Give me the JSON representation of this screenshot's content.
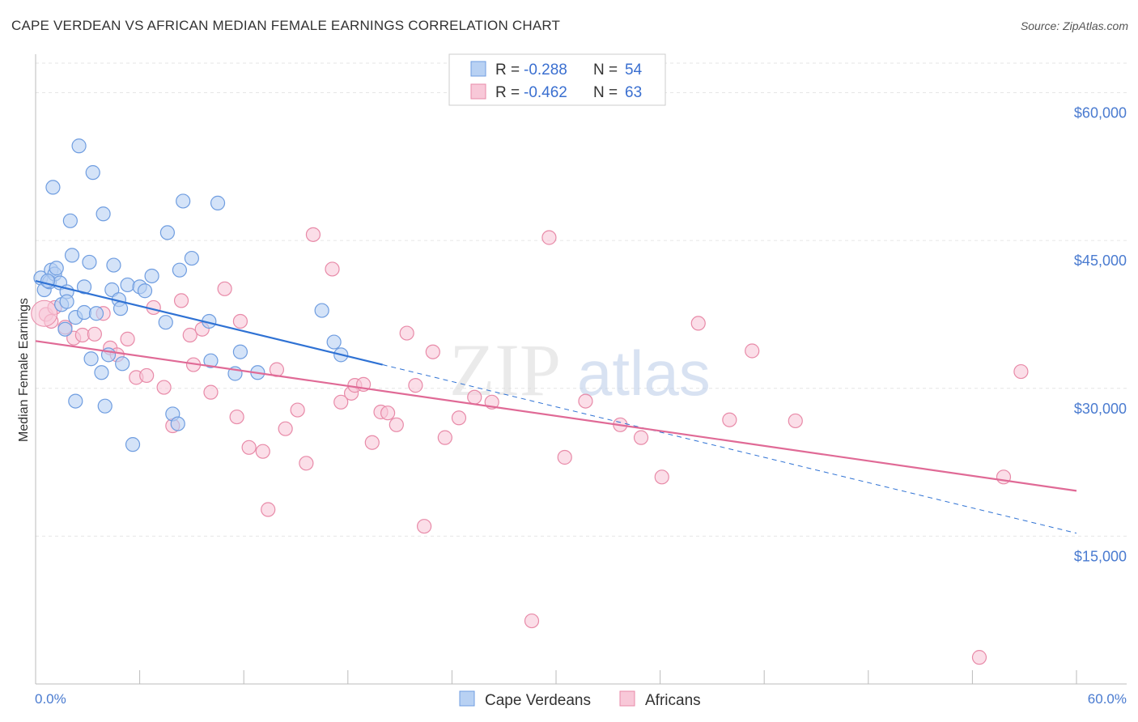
{
  "title": "CAPE VERDEAN VS AFRICAN MEDIAN FEMALE EARNINGS CORRELATION CHART",
  "source": "Source: ZipAtlas.com",
  "watermark": {
    "zip": "ZIP",
    "atlas": "atlas"
  },
  "colors": {
    "blue_fill": "#b8d1f3",
    "blue_stroke": "#6f9de0",
    "blue_line": "#2f72d4",
    "pink_fill": "#f8c8d8",
    "pink_stroke": "#e88aa8",
    "pink_line": "#e06a96",
    "tick": "#4a7bd0",
    "grid": "#e6e6e6"
  },
  "legend": {
    "r_label": "R =",
    "n_label": "N =",
    "rows": [
      {
        "series": "Cape Verdeans",
        "r": "-0.288",
        "n": "54"
      },
      {
        "series": "Africans",
        "r": "-0.462",
        "n": "63"
      }
    ]
  },
  "chart_data": {
    "type": "scatter",
    "title": "CAPE VERDEAN VS AFRICAN MEDIAN FEMALE EARNINGS CORRELATION CHART",
    "xlabel": "",
    "ylabel": "Median Female Earnings",
    "xlim": [
      0,
      60
    ],
    "ylim": [
      0,
      63000
    ],
    "x_tick_labels": [
      "0.0%",
      "60.0%"
    ],
    "y_ticks": [
      {
        "value": 15000,
        "label": "$15,000"
      },
      {
        "value": 30000,
        "label": "$30,000"
      },
      {
        "value": 45000,
        "label": "$45,000"
      },
      {
        "value": 60000,
        "label": "$60,000"
      }
    ],
    "series": [
      {
        "name": "Cape Verdeans",
        "color": "#6f9de0",
        "trend": {
          "x": [
            0,
            20
          ],
          "y": [
            40900,
            32400
          ],
          "dashed_to_x": 60,
          "dashed_to_y": 15300
        },
        "points": [
          [
            0.3,
            41200
          ],
          [
            0.5,
            40000
          ],
          [
            0.8,
            40800
          ],
          [
            0.9,
            42000
          ],
          [
            1.1,
            41600
          ],
          [
            1.2,
            42200
          ],
          [
            1.4,
            40700
          ],
          [
            1.5,
            38500
          ],
          [
            1.7,
            36000
          ],
          [
            1.8,
            39800
          ],
          [
            1.8,
            38800
          ],
          [
            2.0,
            47000
          ],
          [
            2.1,
            43500
          ],
          [
            2.3,
            28700
          ],
          [
            2.3,
            37200
          ],
          [
            2.5,
            54600
          ],
          [
            2.8,
            40300
          ],
          [
            2.8,
            37700
          ],
          [
            3.1,
            42800
          ],
          [
            3.2,
            33000
          ],
          [
            3.3,
            51900
          ],
          [
            3.5,
            37600
          ],
          [
            3.8,
            31600
          ],
          [
            3.9,
            47700
          ],
          [
            4.0,
            28200
          ],
          [
            4.2,
            33400
          ],
          [
            4.4,
            40000
          ],
          [
            4.5,
            42500
          ],
          [
            4.8,
            39000
          ],
          [
            4.9,
            38100
          ],
          [
            5.0,
            32500
          ],
          [
            5.3,
            40500
          ],
          [
            5.6,
            24300
          ],
          [
            6.0,
            40300
          ],
          [
            6.3,
            39900
          ],
          [
            6.7,
            41400
          ],
          [
            7.5,
            36700
          ],
          [
            7.6,
            45800
          ],
          [
            7.9,
            27400
          ],
          [
            8.2,
            26400
          ],
          [
            8.3,
            42000
          ],
          [
            8.5,
            49000
          ],
          [
            9.0,
            43200
          ],
          [
            10.0,
            36800
          ],
          [
            10.1,
            32800
          ],
          [
            10.5,
            48800
          ],
          [
            11.5,
            31500
          ],
          [
            11.8,
            33700
          ],
          [
            12.8,
            31600
          ],
          [
            16.5,
            37900
          ],
          [
            17.2,
            34700
          ],
          [
            17.6,
            33400
          ],
          [
            1.0,
            50400
          ],
          [
            0.7,
            40900
          ]
        ]
      },
      {
        "name": "Africans",
        "color": "#e88aa8",
        "trend": {
          "x": [
            0,
            60
          ],
          "y": [
            34800,
            19600
          ]
        },
        "points": [
          [
            0.6,
            37500
          ],
          [
            1.1,
            38200
          ],
          [
            1.7,
            36200
          ],
          [
            2.2,
            35100
          ],
          [
            2.7,
            35400
          ],
          [
            3.4,
            35500
          ],
          [
            3.9,
            37600
          ],
          [
            4.3,
            34100
          ],
          [
            4.7,
            33400
          ],
          [
            5.3,
            35000
          ],
          [
            5.8,
            31100
          ],
          [
            6.4,
            31300
          ],
          [
            6.8,
            38200
          ],
          [
            7.4,
            30100
          ],
          [
            7.9,
            26200
          ],
          [
            8.4,
            38900
          ],
          [
            8.9,
            35400
          ],
          [
            9.1,
            32400
          ],
          [
            9.6,
            36000
          ],
          [
            10.1,
            29600
          ],
          [
            10.9,
            40100
          ],
          [
            11.6,
            27100
          ],
          [
            11.8,
            36800
          ],
          [
            12.3,
            24000
          ],
          [
            13.1,
            23600
          ],
          [
            13.4,
            17700
          ],
          [
            13.9,
            31900
          ],
          [
            14.4,
            25900
          ],
          [
            15.1,
            27800
          ],
          [
            15.6,
            22400
          ],
          [
            16.0,
            45600
          ],
          [
            17.1,
            42100
          ],
          [
            17.6,
            28600
          ],
          [
            18.2,
            29500
          ],
          [
            18.4,
            30300
          ],
          [
            18.9,
            30400
          ],
          [
            19.4,
            24500
          ],
          [
            19.9,
            27600
          ],
          [
            20.3,
            27500
          ],
          [
            20.8,
            26300
          ],
          [
            21.4,
            35600
          ],
          [
            21.9,
            30300
          ],
          [
            22.4,
            16000
          ],
          [
            22.9,
            33700
          ],
          [
            23.6,
            25000
          ],
          [
            24.4,
            27000
          ],
          [
            25.3,
            29100
          ],
          [
            26.3,
            28600
          ],
          [
            28.6,
            6400
          ],
          [
            29.6,
            45300
          ],
          [
            30.5,
            23000
          ],
          [
            31.7,
            28700
          ],
          [
            33.7,
            26300
          ],
          [
            34.9,
            25000
          ],
          [
            36.1,
            21000
          ],
          [
            38.2,
            36600
          ],
          [
            40.0,
            26800
          ],
          [
            41.3,
            33800
          ],
          [
            43.8,
            26700
          ],
          [
            54.4,
            2700
          ],
          [
            55.8,
            21000
          ],
          [
            56.8,
            31700
          ],
          [
            0.9,
            36800
          ]
        ]
      }
    ]
  }
}
